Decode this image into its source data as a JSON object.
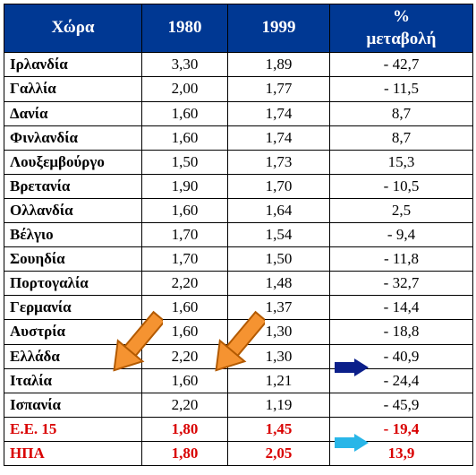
{
  "table": {
    "headers": {
      "country": "Χώρα",
      "y1980": "1980",
      "y1999": "1999",
      "change": "%\nμεταβολή"
    },
    "rows": [
      {
        "country": "Ιρλανδία",
        "y1980": "3,30",
        "y1999": "1,89",
        "change": "- 42,7"
      },
      {
        "country": "Γαλλία",
        "y1980": "2,00",
        "y1999": "1,77",
        "change": "- 11,5"
      },
      {
        "country": "Δανία",
        "y1980": "1,60",
        "y1999": "1,74",
        "change": "8,7"
      },
      {
        "country": "Φινλανδία",
        "y1980": "1,60",
        "y1999": "1,74",
        "change": "8,7"
      },
      {
        "country": "Λουξεμβούργο",
        "y1980": "1,50",
        "y1999": "1,73",
        "change": "15,3"
      },
      {
        "country": "Βρετανία",
        "y1980": "1,90",
        "y1999": "1,70",
        "change": "- 10,5"
      },
      {
        "country": "Ολλανδία",
        "y1980": "1,60",
        "y1999": "1,64",
        "change": "2,5"
      },
      {
        "country": "Βέλγιο",
        "y1980": "1,70",
        "y1999": "1,54",
        "change": "- 9,4"
      },
      {
        "country": "Σουηδία",
        "y1980": "1,70",
        "y1999": "1,50",
        "change": "- 11,8"
      },
      {
        "country": "Πορτογαλία",
        "y1980": "2,20",
        "y1999": "1,48",
        "change": "- 32,7"
      },
      {
        "country": "Γερμανία",
        "y1980": "1,60",
        "y1999": "1,37",
        "change": "- 14,4"
      },
      {
        "country": "Αυστρία",
        "y1980": "1,60",
        "y1999": "1,30",
        "change": "- 18,8"
      },
      {
        "country": "Ελλάδα",
        "y1980": "2,20",
        "y1999": "1,30",
        "change": "- 40,9"
      },
      {
        "country": "Ιταλία",
        "y1980": "1,60",
        "y1999": "1,21",
        "change": "- 24,4"
      },
      {
        "country": "Ισπανία",
        "y1980": "2,20",
        "y1999": "1,19",
        "change": "- 45,9"
      }
    ],
    "summary": [
      {
        "country": "Ε.Ε. 15",
        "y1980": "1,80",
        "y1999": "1,45",
        "change": "- 19,4"
      },
      {
        "country": "ΗΠΑ",
        "y1980": "1,80",
        "y1999": "2,05",
        "change": "13,9"
      }
    ],
    "colors": {
      "header_bg": "#003893",
      "header_fg": "#ffffff",
      "border": "#000000",
      "summary_fg": "#d90000",
      "arrow_orange_fill": "#f59331",
      "arrow_orange_stroke": "#b35a00",
      "arrow_navy": "#0b1f8a",
      "arrow_cyan": "#29b6e8"
    }
  }
}
